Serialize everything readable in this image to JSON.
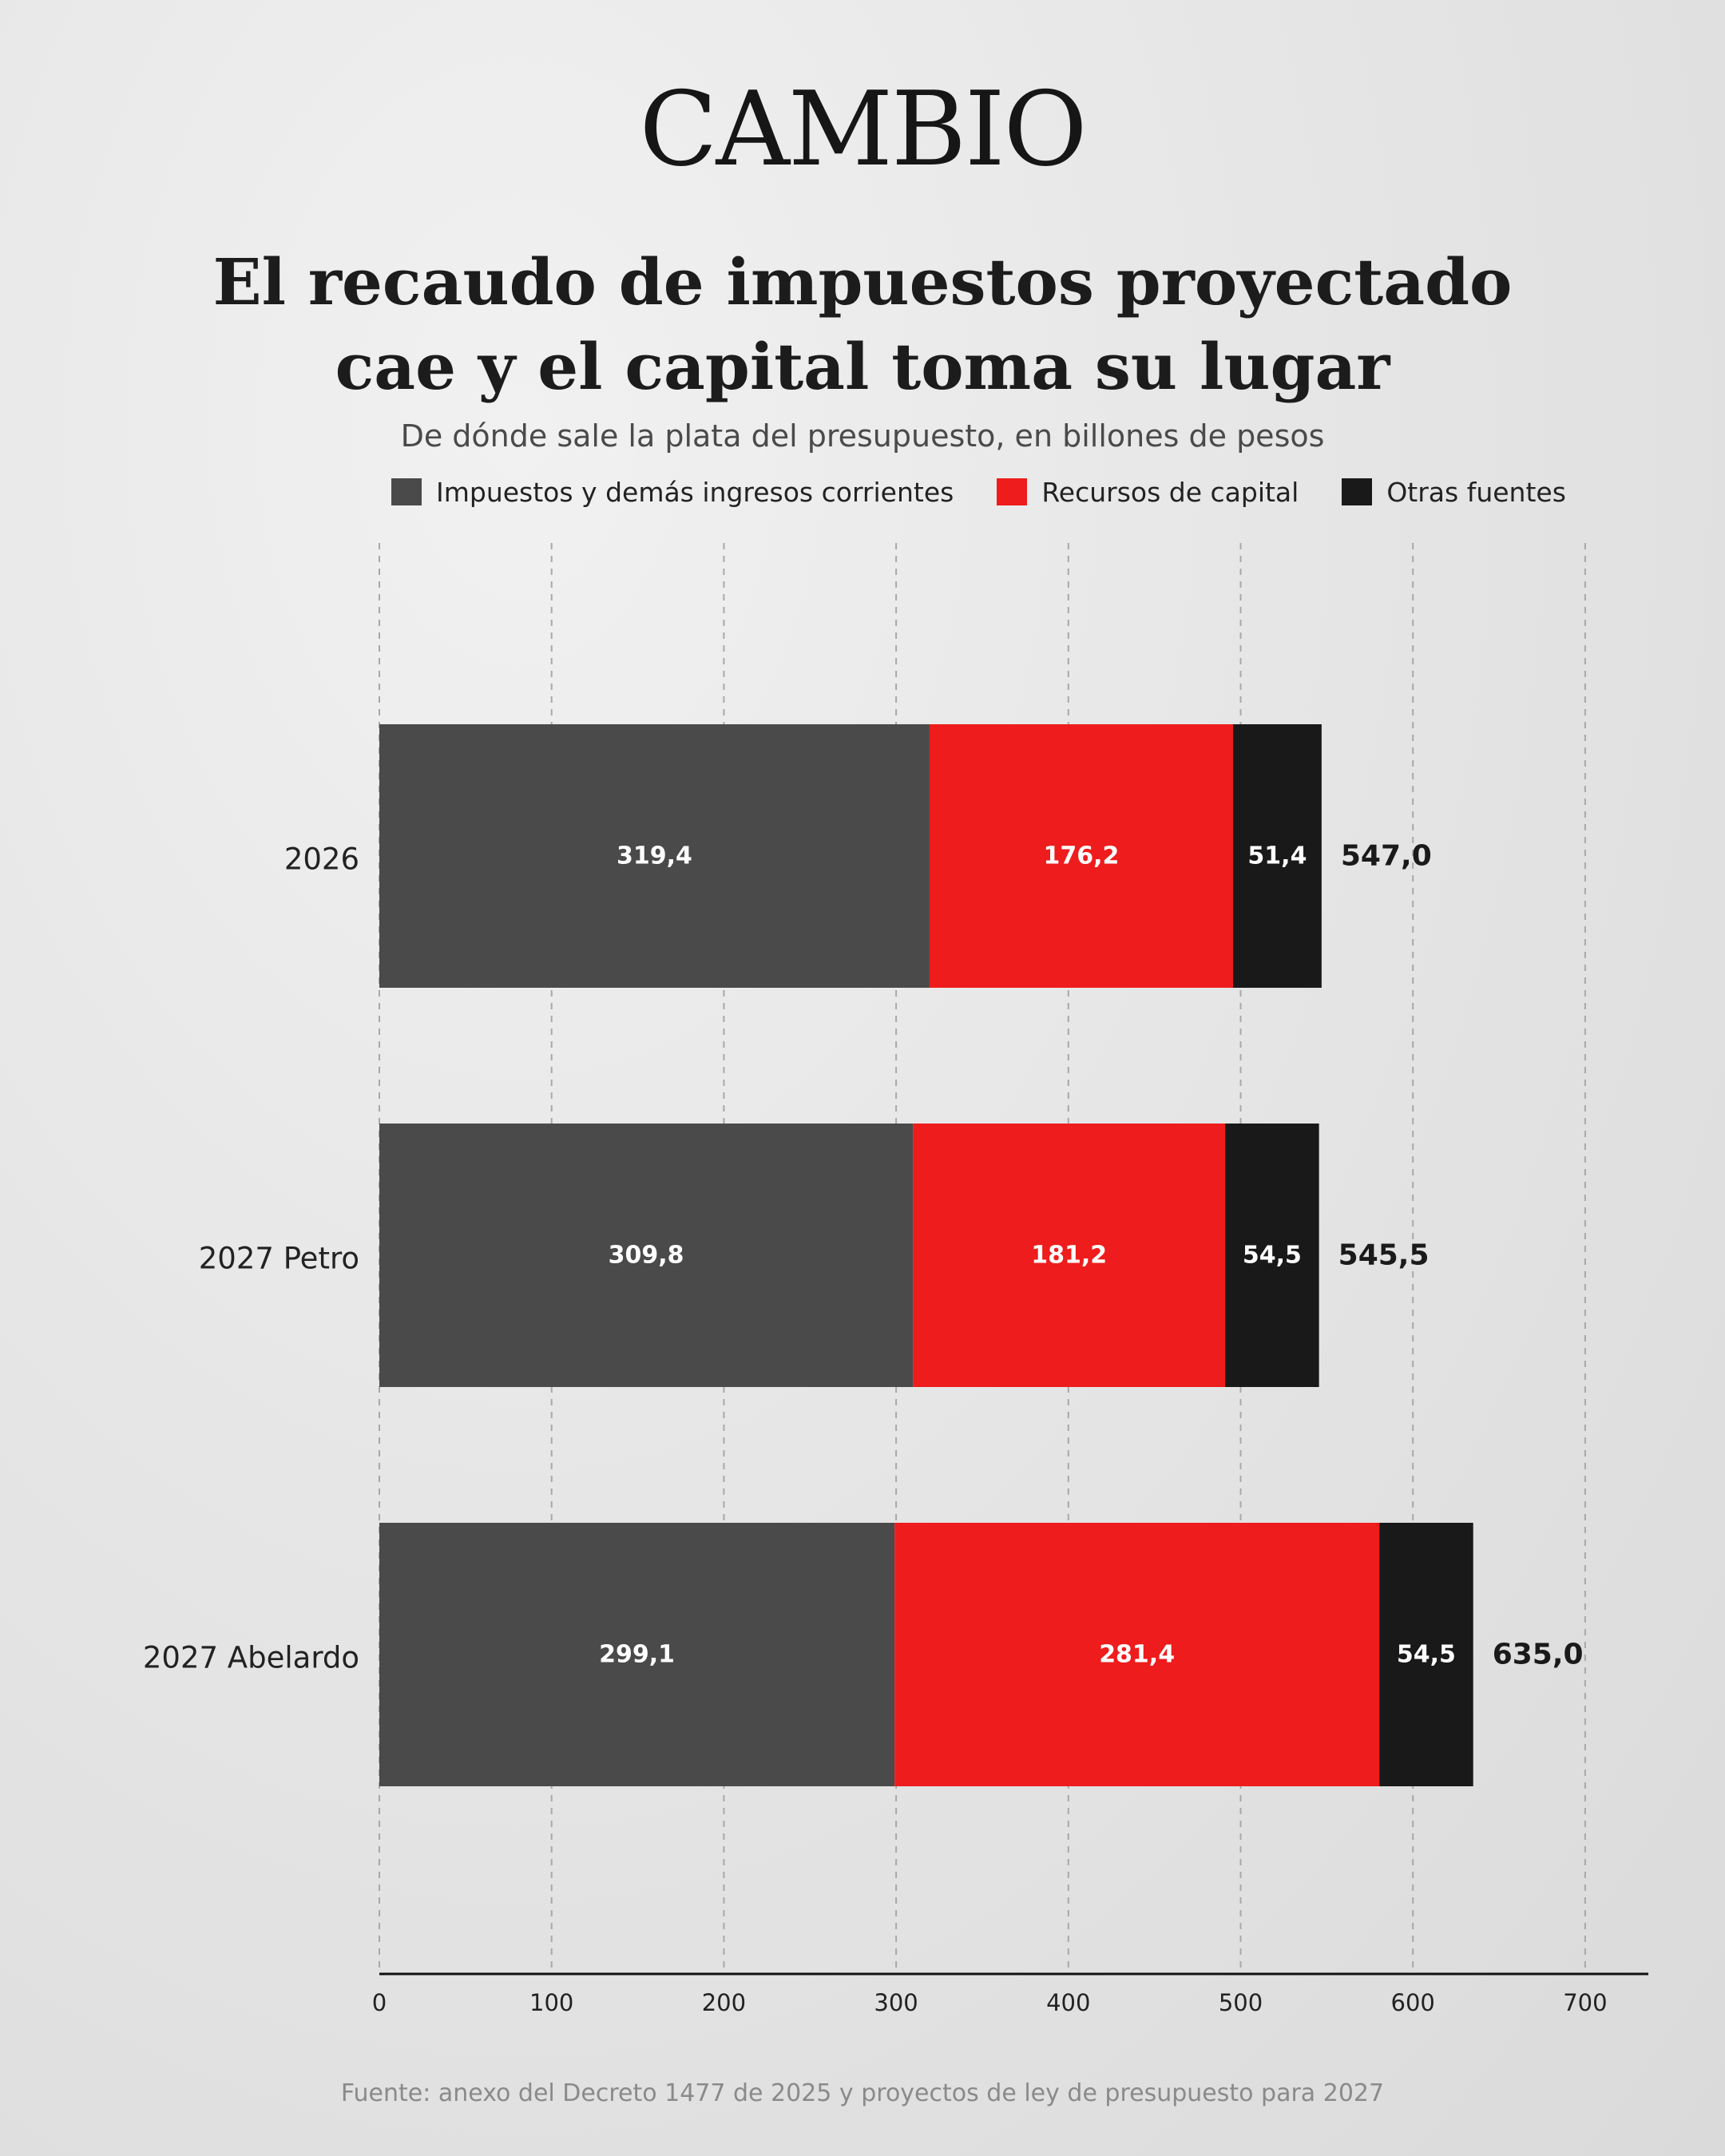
{
  "header": {
    "logo": "CAMBIO",
    "title_line1": "El recaudo de impuestos proyectado",
    "title_line2": "cae y el capital toma su lugar",
    "subtitle": "De dónde sale la plata del presupuesto, en billones de pesos"
  },
  "legend": [
    {
      "label": "Impuestos y demás ingresos corrientes",
      "color": "#4a4a4a"
    },
    {
      "label": "Recursos de capital",
      "color": "#ee1c1c"
    },
    {
      "label": "Otras fuentes",
      "color": "#191919"
    }
  ],
  "chart_data": {
    "type": "bar",
    "orientation": "horizontal",
    "stacked": true,
    "categories": [
      "2026",
      "2027 Petro",
      "2027 Abelardo"
    ],
    "series": [
      {
        "name": "Impuestos y demás ingresos corrientes",
        "values": [
          319.4,
          309.8,
          299.1
        ],
        "labels": [
          "319,4",
          "309,8",
          "299,1"
        ],
        "color": "#4a4a4a"
      },
      {
        "name": "Recursos de capital",
        "values": [
          176.2,
          181.2,
          281.4
        ],
        "labels": [
          "176,2",
          "181,2",
          "281,4"
        ],
        "color": "#ee1c1c"
      },
      {
        "name": "Otras fuentes",
        "values": [
          51.4,
          54.5,
          54.5
        ],
        "labels": [
          "51,4",
          "54,5",
          "54,5"
        ],
        "color": "#191919"
      }
    ],
    "totals": [
      547.0,
      545.5,
      635.0
    ],
    "total_labels": [
      "547,0",
      "545,5",
      "635,0"
    ],
    "xlim": [
      0,
      735
    ],
    "xticks": [
      0,
      100,
      200,
      300,
      400,
      500,
      600,
      700
    ],
    "grid": true,
    "legend_position": "top"
  },
  "source": "Fuente: anexo del Decreto 1477 de 2025 y proyectos de ley de presupuesto para 2027"
}
